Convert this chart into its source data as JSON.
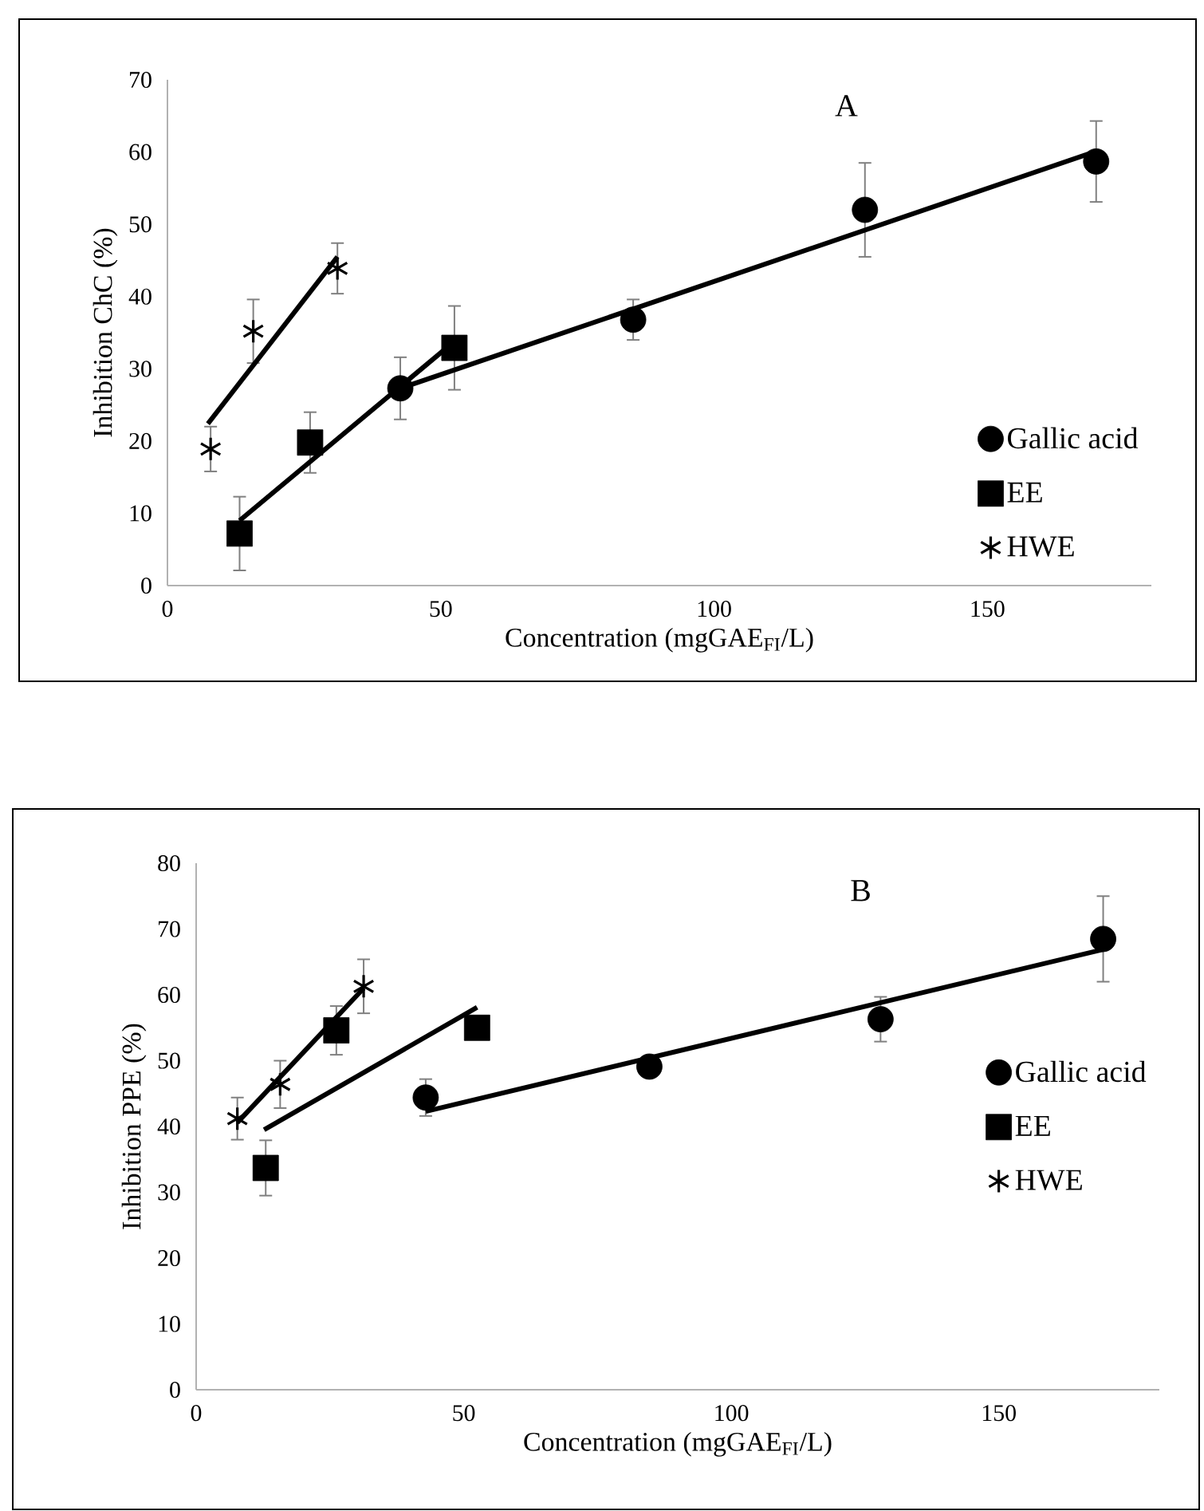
{
  "chart_data": [
    {
      "type": "scatter",
      "title": "A",
      "xlabel": "Concentration (mgGAE$_{FI}$/L)",
      "ylabel": "Inhibition ChC (%)",
      "xlim": [
        0,
        180
      ],
      "ylim": [
        0,
        70
      ],
      "xticks": [
        0,
        50,
        100,
        150
      ],
      "yticks": [
        0,
        10,
        20,
        30,
        40,
        50,
        60,
        70
      ],
      "legend": "bottom right",
      "series": [
        {
          "name": "Gallic acid",
          "marker": "circle",
          "color": "#000000",
          "x": [
            42.6,
            85.2,
            127.6,
            169.9
          ],
          "values": [
            27.3,
            36.8,
            52.0,
            58.7
          ],
          "errors": [
            4.3,
            2.8,
            6.5,
            5.6
          ]
        },
        {
          "name": "EE",
          "marker": "square",
          "color": "#000000",
          "x": [
            13.2,
            26.1,
            52.5
          ],
          "values": [
            7.2,
            19.8,
            32.9
          ],
          "errors": [
            5.1,
            4.2,
            5.8
          ]
        },
        {
          "name": "HWE",
          "marker": "cross",
          "color": "#000000",
          "x": [
            7.9,
            15.7,
            31.1
          ],
          "values": [
            18.9,
            35.2,
            43.9
          ],
          "errors": [
            3.1,
            4.4,
            3.5
          ]
        },
        {
          "type": "line",
          "color": "#000000",
          "x": [
            42.6,
            169.9
          ],
          "values": [
            27.3,
            60.1
          ]
        },
        {
          "type": "line",
          "color": "#000000",
          "x": [
            13.2,
            52.5
          ],
          "values": [
            9.0,
            33.8
          ]
        },
        {
          "type": "line",
          "color": "#000000",
          "x": [
            7.4,
            31.1
          ],
          "values": [
            22.4,
            45.5
          ]
        }
      ]
    },
    {
      "type": "scatter",
      "title": "B",
      "xlabel": "Concentration (mgGAE$_{FI}$/L)",
      "ylabel": "Inhibition PPE (%)",
      "xlim": [
        0,
        180
      ],
      "ylim": [
        0,
        80
      ],
      "xticks": [
        0,
        50,
        100,
        150
      ],
      "yticks": [
        0,
        10,
        20,
        30,
        40,
        50,
        60,
        70,
        80
      ],
      "legend": "right",
      "series": [
        {
          "name": "Gallic acid",
          "marker": "circle",
          "color": "#000000",
          "x": [
            42.9,
            84.7,
            127.9,
            169.5
          ],
          "values": [
            44.4,
            49.1,
            56.3,
            68.5
          ],
          "errors": [
            2.8,
            null,
            3.4,
            6.5
          ]
        },
        {
          "name": "EE",
          "marker": "square",
          "color": "#000000",
          "x": [
            13.0,
            26.2,
            52.5
          ],
          "values": [
            33.7,
            54.6,
            55.0
          ],
          "errors": [
            4.2,
            3.7,
            null
          ]
        },
        {
          "name": "HWE",
          "marker": "cross",
          "color": "#000000",
          "x": [
            7.7,
            15.7,
            31.3
          ],
          "values": [
            41.2,
            46.4,
            61.3
          ],
          "errors": [
            3.2,
            3.6,
            4.1
          ]
        },
        {
          "type": "line",
          "color": "#000000",
          "x": [
            42.9,
            169.5
          ],
          "values": [
            42.3,
            66.9
          ]
        },
        {
          "type": "line",
          "color": "#000000",
          "x": [
            12.7,
            52.5
          ],
          "values": [
            39.5,
            58.1
          ]
        },
        {
          "type": "line",
          "color": "#000000",
          "x": [
            7.7,
            31.3
          ],
          "values": [
            40.6,
            61.0
          ]
        }
      ]
    }
  ]
}
